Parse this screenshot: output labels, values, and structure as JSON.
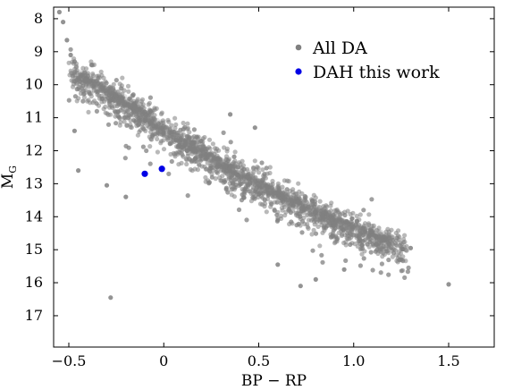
{
  "chart_data": {
    "type": "scatter",
    "xlabel": "BP − RP",
    "ylabel_main": "M",
    "ylabel_sub": "G",
    "xlim": [
      -0.58,
      1.74
    ],
    "ylim": [
      17.95,
      7.65
    ],
    "y_inverted": true,
    "x_ticks": [
      -0.5,
      0,
      0.5,
      1.0,
      1.5
    ],
    "x_tick_labels": [
      "−0.5",
      "0",
      "0.5",
      "1.0",
      "1.5"
    ],
    "y_ticks": [
      8,
      9,
      10,
      11,
      12,
      13,
      14,
      15,
      16,
      17
    ],
    "y_tick_labels": [
      "8",
      "9",
      "10",
      "11",
      "12",
      "13",
      "14",
      "15",
      "16",
      "17"
    ],
    "legend_position": "top-right",
    "series": [
      {
        "name": "All DA",
        "color": "#808080",
        "marker": "circle",
        "sequence_reference": [
          [
            -0.45,
            9.7
          ],
          [
            -0.3,
            10.2
          ],
          [
            -0.15,
            10.75
          ],
          [
            0.0,
            11.35
          ],
          [
            0.15,
            11.9
          ],
          [
            0.3,
            12.4
          ],
          [
            0.45,
            12.85
          ],
          [
            0.6,
            13.3
          ],
          [
            0.75,
            13.7
          ],
          [
            0.9,
            14.1
          ],
          [
            1.05,
            14.45
          ],
          [
            1.2,
            14.75
          ]
        ],
        "sparse_points": [
          [
            -0.55,
            7.8
          ],
          [
            -0.53,
            8.1
          ],
          [
            -0.51,
            8.65
          ],
          [
            -0.49,
            9.1
          ],
          [
            -0.47,
            9.3
          ],
          [
            -0.28,
            16.45
          ],
          [
            1.5,
            16.05
          ],
          [
            0.72,
            16.1
          ],
          [
            1.3,
            14.95
          ],
          [
            1.25,
            15.3
          ],
          [
            -0.3,
            13.05
          ],
          [
            -0.2,
            13.4
          ],
          [
            0.95,
            15.6
          ],
          [
            0.6,
            15.45
          ],
          [
            -0.38,
            9.4
          ],
          [
            -0.45,
            12.6
          ],
          [
            -0.47,
            11.4
          ],
          [
            0.35,
            10.9
          ],
          [
            0.48,
            11.3
          ],
          [
            0.8,
            15.9
          ]
        ]
      },
      {
        "name": "DAH this work",
        "color": "#0000e6",
        "marker": "circle",
        "points": [
          [
            -0.1,
            12.7
          ],
          [
            -0.01,
            12.55
          ]
        ]
      }
    ]
  }
}
